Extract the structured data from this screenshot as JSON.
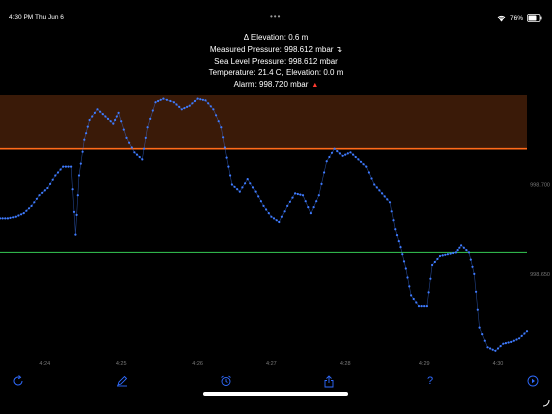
{
  "status": {
    "time": "4:30 PM",
    "date": "Thu Jun 6",
    "battery": "76%",
    "battery_level": 0.76
  },
  "readout": {
    "elevation_delta": "Δ Elevation: 0.6 m",
    "measured_pressure": "Measured Pressure: 998.612 mbar",
    "sea_level_pressure": "Sea Level Pressure: 998.612 mbar",
    "temperature": "Temperature: 21.4 C, Elevation: 0.0 m",
    "alarm": "Alarm: 998.720 mbar"
  },
  "colors": {
    "background": "#000000",
    "series": "#3f7bff",
    "alarm_line": "#ff6a1a",
    "alarm_zone": "#3a1a08",
    "reference_line": "#2fb24a",
    "tick_text": "#7a7a7a",
    "toolbar_icon": "#2f6bff"
  },
  "toolbar": {
    "icons": [
      "refresh-icon",
      "pencil-icon",
      "alarm-clock-icon",
      "share-icon",
      "help-icon",
      "play-icon"
    ]
  },
  "chart_data": {
    "type": "line",
    "x_tick_labels": [
      "4:24",
      "4:25",
      "4:26",
      "4:27",
      "4:28",
      "4:29",
      "4:30"
    ],
    "y_tick_labels": [
      "998.700",
      "998.650"
    ],
    "alarm_level": 998.72,
    "reference_level": 998.662,
    "xlim": [
      0,
      100
    ],
    "ylim": [
      998.603,
      998.75
    ],
    "series": [
      {
        "values": [
          [
            0,
            998.681
          ],
          [
            1.5,
            998.681
          ],
          [
            3,
            998.682
          ],
          [
            4.5,
            998.684
          ],
          [
            6,
            998.688
          ],
          [
            7.5,
            998.694
          ],
          [
            9,
            998.698
          ],
          [
            10.5,
            998.705
          ],
          [
            12,
            998.71
          ],
          [
            13.5,
            998.71
          ],
          [
            14.3,
            998.672
          ],
          [
            15,
            998.705
          ],
          [
            16,
            998.725
          ],
          [
            17,
            998.736
          ],
          [
            18.5,
            998.742
          ],
          [
            20,
            998.738
          ],
          [
            21.5,
            998.734
          ],
          [
            22.5,
            998.74
          ],
          [
            24,
            998.726
          ],
          [
            25.5,
            998.718
          ],
          [
            27,
            998.714
          ],
          [
            28,
            998.732
          ],
          [
            29.5,
            998.746
          ],
          [
            31,
            998.748
          ],
          [
            33,
            998.746
          ],
          [
            34.5,
            998.742
          ],
          [
            36,
            998.744
          ],
          [
            37.5,
            998.748
          ],
          [
            39,
            998.747
          ],
          [
            40.5,
            998.742
          ],
          [
            42,
            998.732
          ],
          [
            43,
            998.715
          ],
          [
            44,
            998.7
          ],
          [
            45.5,
            998.696
          ],
          [
            47,
            998.703
          ],
          [
            48.5,
            998.696
          ],
          [
            50,
            998.688
          ],
          [
            51.5,
            998.682
          ],
          [
            53,
            998.679
          ],
          [
            54.5,
            998.688
          ],
          [
            56,
            998.695
          ],
          [
            57.5,
            998.694
          ],
          [
            59,
            998.684
          ],
          [
            60.5,
            998.694
          ],
          [
            62,
            998.713
          ],
          [
            63.5,
            998.72
          ],
          [
            65,
            998.716
          ],
          [
            66.5,
            998.718
          ],
          [
            68,
            998.714
          ],
          [
            69.5,
            998.71
          ],
          [
            71,
            998.7
          ],
          [
            72.5,
            998.695
          ],
          [
            74,
            998.69
          ],
          [
            75,
            998.675
          ],
          [
            76,
            998.665
          ],
          [
            77,
            998.653
          ],
          [
            78,
            998.638
          ],
          [
            79.5,
            998.632
          ],
          [
            81,
            998.632
          ],
          [
            82,
            998.655
          ],
          [
            83.5,
            998.66
          ],
          [
            85,
            998.661
          ],
          [
            86.5,
            998.662
          ],
          [
            87.5,
            998.666
          ],
          [
            89,
            998.662
          ],
          [
            90,
            998.65
          ],
          [
            91,
            998.62
          ],
          [
            92.5,
            998.609
          ],
          [
            94,
            998.607
          ],
          [
            95.5,
            998.611
          ],
          [
            97,
            998.612
          ],
          [
            98.5,
            998.614
          ],
          [
            100,
            998.618
          ]
        ]
      }
    ]
  }
}
